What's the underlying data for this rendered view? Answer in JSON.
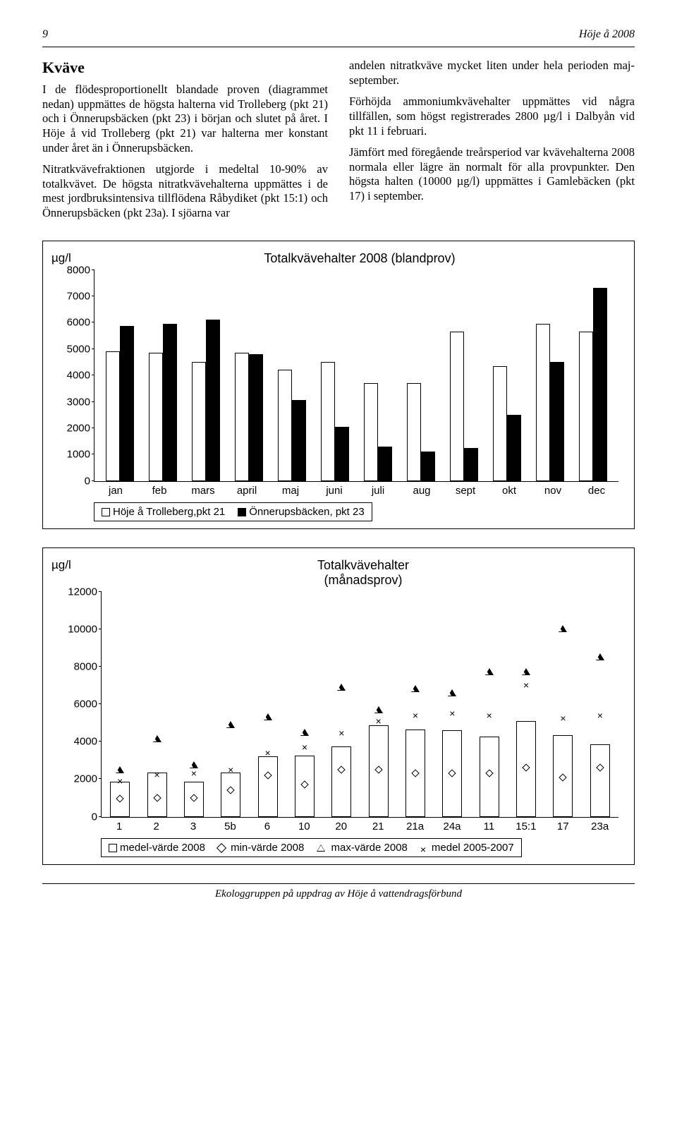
{
  "header": {
    "page_number": "9",
    "doc_title": "Höje å 2008"
  },
  "section_heading": "Kväve",
  "left_paragraphs": [
    "I de flödesproportionellt blandade proven (diagrammet nedan) uppmättes de högsta halterna vid Trolleberg (pkt 21) och i Önnerupsbäcken (pkt 23) i början och slutet på året. I Höje å vid Trolleberg (pkt 21) var halterna mer konstant under året än i Önnerupsbäcken.",
    "Nitratkvävefraktionen utgjorde i medeltal 10-90% av totalkvävet. De högsta nitratkväve­halterna uppmättes i de mest jordbruks­intensiva tillflödena Råbydiket (pkt 15:1) och Önnerupsbäcken (pkt 23a). I sjöarna var"
  ],
  "right_paragraphs": [
    "andelen nitratkväve mycket liten under hela perioden maj-september.",
    "Förhöjda ammoniumkvävehalter uppmättes vid några tillfällen, som högst registrerades 2800 µg/l i Dalbyån vid pkt 11 i februari.",
    "Jämfört med föregående treårsperiod var kvävehalterna 2008 normala eller lägre än normalt för alla provpunkter. Den högsta halten (10000 µg/l) uppmättes i Gamlebäcken (pkt 17) i september."
  ],
  "chart1": {
    "ylabel": "µg/l",
    "title": "Totalkvävehalter 2008 (blandprov)",
    "ymax": 8000,
    "yticks": [
      0,
      1000,
      2000,
      3000,
      4000,
      5000,
      6000,
      7000,
      8000
    ],
    "categories": [
      "jan",
      "feb",
      "mars",
      "april",
      "maj",
      "juni",
      "juli",
      "aug",
      "sept",
      "okt",
      "nov",
      "dec"
    ],
    "series_a_label": "Höje å Trolleberg,pkt  21",
    "series_b_label": "Önnerupsbäcken, pkt 23",
    "series_a": [
      4900,
      4850,
      4500,
      4850,
      4200,
      4500,
      3700,
      3700,
      5650,
      4350,
      5950,
      5650
    ],
    "series_b": [
      5850,
      5950,
      6100,
      4800,
      3050,
      2050,
      1300,
      1100,
      1250,
      2500,
      4500,
      7300
    ],
    "colors": {
      "a": "#ffffff",
      "b": "#000000",
      "border": "#000000"
    }
  },
  "chart2": {
    "ylabel": "µg/l",
    "title": "Totalkvävehalter",
    "subtitle": "(månadsprov)",
    "ymax": 12000,
    "yticks": [
      0,
      2000,
      4000,
      6000,
      8000,
      10000,
      12000
    ],
    "stations": [
      "1",
      "2",
      "3",
      "5b",
      "6",
      "10",
      "20",
      "21",
      "21a",
      "24a",
      "11",
      "15:1",
      "17",
      "23a"
    ],
    "medel_2008": [
      1850,
      2350,
      1850,
      2350,
      3200,
      3250,
      3750,
      4850,
      4650,
      4600,
      4250,
      5100,
      4350,
      3850
    ],
    "min_2008": [
      950,
      1000,
      1000,
      1400,
      2200,
      1700,
      2500,
      2500,
      2300,
      2300,
      2300,
      2600,
      2100,
      2600
    ],
    "max_2008": [
      2500,
      4150,
      2750,
      4900,
      5300,
      4500,
      6900,
      5700,
      6800,
      6600,
      7700,
      7700,
      10000,
      8500
    ],
    "medel_0507": [
      1900,
      2250,
      2300,
      2500,
      3400,
      3700,
      4450,
      5100,
      5400,
      5500,
      5400,
      7000,
      5250,
      5400
    ],
    "legend": {
      "a": "medel-värde 2008",
      "b": "min-värde 2008",
      "c": "max-värde 2008",
      "d": "medel 2005-2007"
    }
  },
  "footer": "Ekologgruppen på uppdrag av Höje å vattendragsförbund"
}
